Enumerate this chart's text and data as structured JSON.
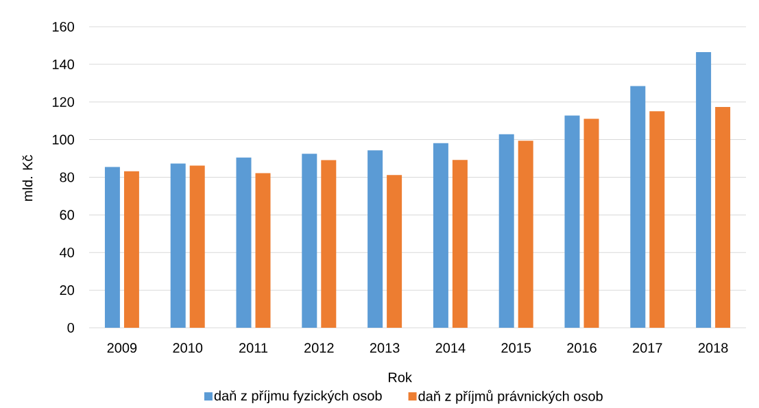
{
  "chart_data": {
    "type": "bar",
    "xlabel": "Rok",
    "ylabel": "mld. Kč",
    "categories": [
      "2009",
      "2010",
      "2011",
      "2012",
      "2013",
      "2014",
      "2015",
      "2016",
      "2017",
      "2018"
    ],
    "series": [
      {
        "name": "daň z příjmu fyzických osob",
        "color": "#5b9bd5",
        "values": [
          85.5,
          87.3,
          90.5,
          92.5,
          94.3,
          98.1,
          102.9,
          112.8,
          128.5,
          146.5
        ]
      },
      {
        "name": "daň z příjmů právnických osob",
        "color": "#ed7d31",
        "values": [
          83.2,
          86.2,
          82.2,
          89.1,
          81.2,
          89.2,
          99.4,
          111.1,
          115.1,
          117.4
        ]
      }
    ],
    "ylim": [
      0,
      160
    ],
    "yticks": [
      0,
      20,
      40,
      60,
      80,
      100,
      120,
      140,
      160
    ],
    "grid": "y",
    "legend": "bottom"
  }
}
